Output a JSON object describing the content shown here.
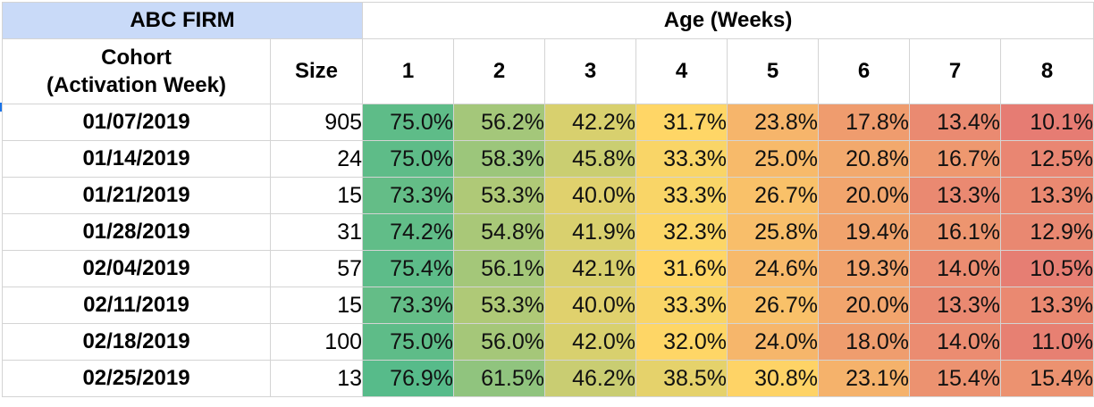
{
  "table": {
    "firm_label": "ABC FIRM",
    "age_label": "Age (Weeks)",
    "cohort_header_line1": "Cohort",
    "cohort_header_line2": "(Activation Week)",
    "size_header": "Size"
  },
  "chart_data": {
    "type": "heatmap",
    "title": "ABC FIRM",
    "xlabel": "Age (Weeks)",
    "ylabel": "Cohort (Activation Week)",
    "weeks": [
      "1",
      "2",
      "3",
      "4",
      "5",
      "6",
      "7",
      "8"
    ],
    "rows": [
      {
        "cohort": "01/07/2019",
        "size": "905",
        "values": [
          "75.0%",
          "56.2%",
          "42.2%",
          "31.7%",
          "23.8%",
          "17.8%",
          "13.4%",
          "10.1%"
        ]
      },
      {
        "cohort": "01/14/2019",
        "size": "24",
        "values": [
          "75.0%",
          "58.3%",
          "45.8%",
          "33.3%",
          "25.0%",
          "20.8%",
          "16.7%",
          "12.5%"
        ]
      },
      {
        "cohort": "01/21/2019",
        "size": "15",
        "values": [
          "73.3%",
          "53.3%",
          "40.0%",
          "33.3%",
          "26.7%",
          "20.0%",
          "13.3%",
          "13.3%"
        ]
      },
      {
        "cohort": "01/28/2019",
        "size": "31",
        "values": [
          "74.2%",
          "54.8%",
          "41.9%",
          "32.3%",
          "25.8%",
          "19.4%",
          "16.1%",
          "12.9%"
        ]
      },
      {
        "cohort": "02/04/2019",
        "size": "57",
        "values": [
          "75.4%",
          "56.1%",
          "42.1%",
          "31.6%",
          "24.6%",
          "19.3%",
          "14.0%",
          "10.5%"
        ]
      },
      {
        "cohort": "02/11/2019",
        "size": "15",
        "values": [
          "73.3%",
          "53.3%",
          "40.0%",
          "33.3%",
          "26.7%",
          "20.0%",
          "13.3%",
          "13.3%"
        ]
      },
      {
        "cohort": "02/18/2019",
        "size": "100",
        "values": [
          "75.0%",
          "56.0%",
          "42.0%",
          "32.0%",
          "24.0%",
          "18.0%",
          "14.0%",
          "11.0%"
        ]
      },
      {
        "cohort": "02/25/2019",
        "size": "13",
        "values": [
          "76.9%",
          "61.5%",
          "46.2%",
          "38.5%",
          "30.8%",
          "23.1%",
          "15.4%",
          "15.4%"
        ]
      }
    ],
    "color_scale": {
      "low": "#e67c73",
      "mid": "#ffd666",
      "high": "#57bb8a"
    }
  }
}
